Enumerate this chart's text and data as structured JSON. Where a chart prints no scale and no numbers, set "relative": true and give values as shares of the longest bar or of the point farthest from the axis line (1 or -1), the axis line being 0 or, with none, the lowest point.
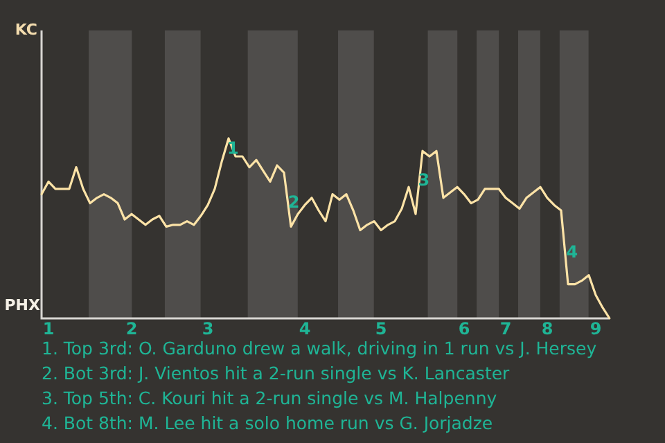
{
  "chart_data": {
    "type": "line",
    "color": "#fde3a7",
    "relative": true,
    "categories": [
      null,
      "1",
      null,
      null,
      null,
      null,
      null,
      null,
      null,
      null,
      null,
      null,
      null,
      "2",
      null,
      null,
      null,
      null,
      null,
      null,
      null,
      null,
      null,
      null,
      "3",
      null,
      null,
      null,
      null,
      null,
      null,
      null,
      null,
      null,
      null,
      null,
      null,
      null,
      "4",
      null,
      null,
      null,
      null,
      null,
      null,
      null,
      null,
      null,
      null,
      "5",
      null,
      null,
      null,
      null,
      null,
      null,
      null,
      null,
      null,
      null,
      null,
      "6",
      null,
      null,
      null,
      null,
      null,
      "7",
      null,
      null,
      null,
      null,
      null,
      "8",
      null,
      null,
      null,
      null,
      null,
      null,
      "9",
      null,
      null
    ],
    "values": [
      0.69,
      0.76,
      0.72,
      0.72,
      0.72,
      0.84,
      0.72,
      0.64,
      0.67,
      0.69,
      0.67,
      0.64,
      0.55,
      0.58,
      0.55,
      0.52,
      0.55,
      0.57,
      0.51,
      0.52,
      0.52,
      0.54,
      0.52,
      0.57,
      0.63,
      0.72,
      0.87,
      1,
      0.9,
      0.9,
      0.84,
      0.88,
      0.82,
      0.76,
      0.85,
      0.81,
      0.51,
      0.58,
      0.63,
      0.67,
      0.6,
      0.54,
      0.69,
      0.66,
      0.69,
      0.6,
      0.49,
      0.52,
      0.54,
      0.49,
      0.52,
      0.54,
      0.61,
      0.73,
      0.58,
      0.93,
      0.9,
      0.93,
      0.67,
      0.7,
      0.73,
      0.69,
      0.64,
      0.66,
      0.72,
      0.72,
      0.72,
      0.67,
      0.64,
      0.61,
      0.67,
      0.7,
      0.73,
      0.67,
      0.63,
      0.6,
      0.19,
      0.19,
      0.21,
      0.24,
      0.13,
      0.06,
      0
    ],
    "marker": "none",
    "line_style": "solid",
    "annotations": [
      "KC",
      "PHX",
      "1",
      "2",
      "3",
      "4",
      "1. Top 3rd: O. Garduno drew a walk, driving in 1 run vs J. Hersey",
      "2. Bot 3rd: J. Vientos hit a 2-run single vs K. Lancaster",
      "3. Top 5th: C. Kouri hit a 2-run single vs M. Halpenny",
      "4. Bot 8th: M. Lee hit a solo home run vs G. Jorjadze"
    ]
  }
}
